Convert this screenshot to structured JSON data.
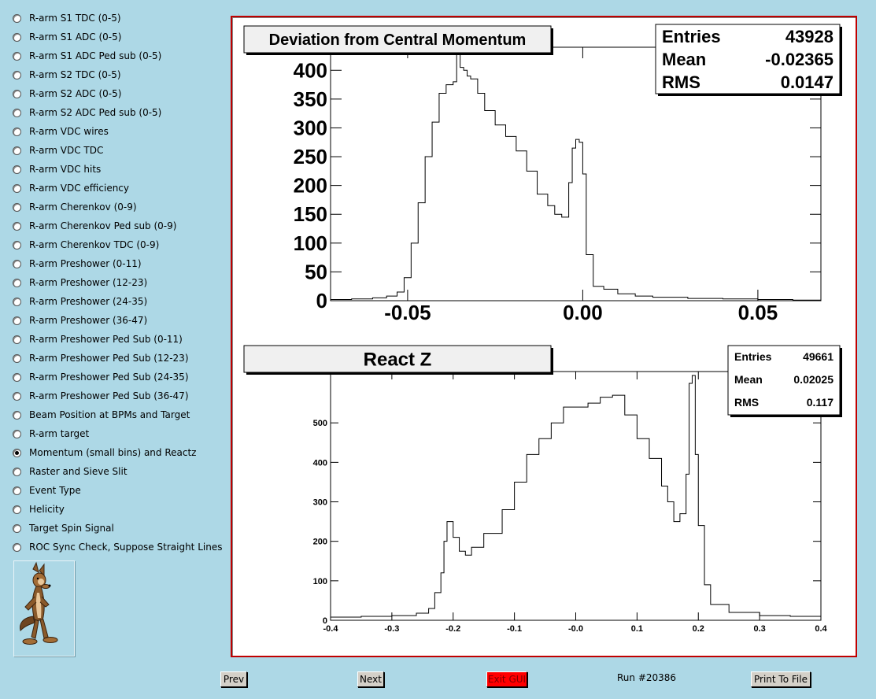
{
  "menu": {
    "items": [
      {
        "label": "R-arm S1 TDC (0-5)",
        "selected": false
      },
      {
        "label": "R-arm S1 ADC (0-5)",
        "selected": false
      },
      {
        "label": "R-arm S1 ADC Ped sub (0-5)",
        "selected": false
      },
      {
        "label": "R-arm S2 TDC (0-5)",
        "selected": false
      },
      {
        "label": "R-arm S2 ADC (0-5)",
        "selected": false
      },
      {
        "label": "R-arm S2 ADC Ped sub (0-5)",
        "selected": false
      },
      {
        "label": "R-arm VDC wires",
        "selected": false
      },
      {
        "label": "R-arm VDC TDC",
        "selected": false
      },
      {
        "label": "R-arm VDC hits",
        "selected": false
      },
      {
        "label": "R-arm VDC efficiency",
        "selected": false
      },
      {
        "label": "R-arm Cherenkov (0-9)",
        "selected": false
      },
      {
        "label": "R-arm Cherenkov Ped sub (0-9)",
        "selected": false
      },
      {
        "label": "R-arm Cherenkov TDC (0-9)",
        "selected": false
      },
      {
        "label": "R-arm Preshower (0-11)",
        "selected": false
      },
      {
        "label": "R-arm Preshower (12-23)",
        "selected": false
      },
      {
        "label": "R-arm Preshower (24-35)",
        "selected": false
      },
      {
        "label": "R-arm Preshower (36-47)",
        "selected": false
      },
      {
        "label": "R-arm Preshower Ped Sub (0-11)",
        "selected": false
      },
      {
        "label": "R-arm Preshower Ped Sub (12-23)",
        "selected": false
      },
      {
        "label": "R-arm Preshower Ped Sub (24-35)",
        "selected": false
      },
      {
        "label": "R-arm Preshower Ped Sub (36-47)",
        "selected": false
      },
      {
        "label": "Beam Position at BPMs and Target",
        "selected": false
      },
      {
        "label": "R-arm target",
        "selected": false
      },
      {
        "label": "Momentum (small bins) and Reactz",
        "selected": true
      },
      {
        "label": "Raster and Sieve Slit",
        "selected": false
      },
      {
        "label": "Event Type",
        "selected": false
      },
      {
        "label": "Helicity",
        "selected": false
      },
      {
        "label": "Target Spin Signal",
        "selected": false
      },
      {
        "label": "ROC Sync Check, Suppose Straight Lines",
        "selected": false
      }
    ]
  },
  "footer": {
    "prev_label": "Prev",
    "next_label": "Next",
    "exit_label": "Exit GUI",
    "run_label": "Run #20386",
    "print_label": "Print To File"
  },
  "colors": {
    "background": "#add8e6",
    "frame": "#c00000",
    "exit": "#ff0000"
  },
  "chart_data": [
    {
      "type": "bar",
      "title": "Deviation from Central Momentum",
      "xlabel": "",
      "ylabel": "",
      "xlim": [
        -0.072,
        0.068
      ],
      "ylim": [
        0,
        440
      ],
      "xticks": [
        -0.05,
        0.0,
        0.05
      ],
      "xtick_labels": [
        "-0.05",
        "0.00",
        "0.05"
      ],
      "yticks": [
        0,
        50,
        100,
        150,
        200,
        250,
        300,
        350,
        400
      ],
      "ytick_labels": [
        "0",
        "50",
        "100",
        "150",
        "200",
        "250",
        "300",
        "350",
        "400"
      ],
      "stats": {
        "entries_label": "Entries",
        "entries": "43928",
        "mean_label": "Mean",
        "mean": "-0.02365",
        "rms_label": "RMS",
        "rms": "0.0147"
      },
      "x": [
        -0.072,
        -0.066,
        -0.06,
        -0.056,
        -0.053,
        -0.051,
        -0.049,
        -0.047,
        -0.045,
        -0.043,
        -0.041,
        -0.039,
        -0.037,
        -0.036,
        -0.035,
        -0.034,
        -0.033,
        -0.032,
        -0.03,
        -0.028,
        -0.025,
        -0.022,
        -0.019,
        -0.016,
        -0.013,
        -0.01,
        -0.008,
        -0.006,
        -0.004,
        -0.003,
        -0.002,
        -0.001,
        0.0,
        0.001,
        0.003,
        0.006,
        0.01,
        0.015,
        0.02,
        0.03,
        0.04,
        0.05,
        0.06,
        0.068
      ],
      "values": [
        2,
        3,
        5,
        8,
        15,
        40,
        100,
        170,
        250,
        310,
        360,
        375,
        380,
        430,
        405,
        400,
        390,
        385,
        360,
        330,
        305,
        285,
        260,
        225,
        185,
        165,
        150,
        145,
        205,
        265,
        280,
        275,
        220,
        80,
        25,
        20,
        12,
        8,
        6,
        4,
        3,
        2,
        1,
        1
      ],
      "grid": false
    },
    {
      "type": "bar",
      "title": "React Z",
      "xlabel": "",
      "ylabel": "",
      "xlim": [
        -0.4,
        0.4
      ],
      "ylim": [
        0,
        630
      ],
      "xticks": [
        -0.4,
        -0.3,
        -0.2,
        -0.1,
        0.0,
        0.1,
        0.2,
        0.3,
        0.4
      ],
      "xtick_labels": [
        "-0.4",
        "-0.3",
        "-0.2",
        "-0.1",
        "-0.0",
        "0.1",
        "0.2",
        "0.3",
        "0.4"
      ],
      "yticks": [
        0,
        100,
        200,
        300,
        400,
        500
      ],
      "ytick_labels": [
        "0",
        "100",
        "200",
        "300",
        "400",
        "500"
      ],
      "stats": {
        "entries_label": "Entries",
        "entries": "49661",
        "mean_label": "Mean",
        "mean": "0.02025",
        "rms_label": "RMS",
        "rms": "0.117"
      },
      "x": [
        -0.4,
        -0.35,
        -0.3,
        -0.26,
        -0.24,
        -0.23,
        -0.22,
        -0.215,
        -0.21,
        -0.2,
        -0.19,
        -0.18,
        -0.17,
        -0.15,
        -0.12,
        -0.1,
        -0.08,
        -0.06,
        -0.04,
        -0.02,
        0.0,
        0.02,
        0.04,
        0.06,
        0.08,
        0.1,
        0.12,
        0.14,
        0.15,
        0.16,
        0.17,
        0.18,
        0.185,
        0.19,
        0.195,
        0.2,
        0.21,
        0.22,
        0.25,
        0.3,
        0.35,
        0.4
      ],
      "values": [
        8,
        10,
        12,
        18,
        30,
        70,
        120,
        200,
        250,
        210,
        175,
        165,
        185,
        220,
        280,
        350,
        420,
        460,
        500,
        540,
        540,
        550,
        565,
        570,
        520,
        460,
        410,
        340,
        300,
        250,
        270,
        370,
        600,
        620,
        420,
        240,
        90,
        40,
        20,
        12,
        10,
        8
      ],
      "grid": false
    }
  ]
}
